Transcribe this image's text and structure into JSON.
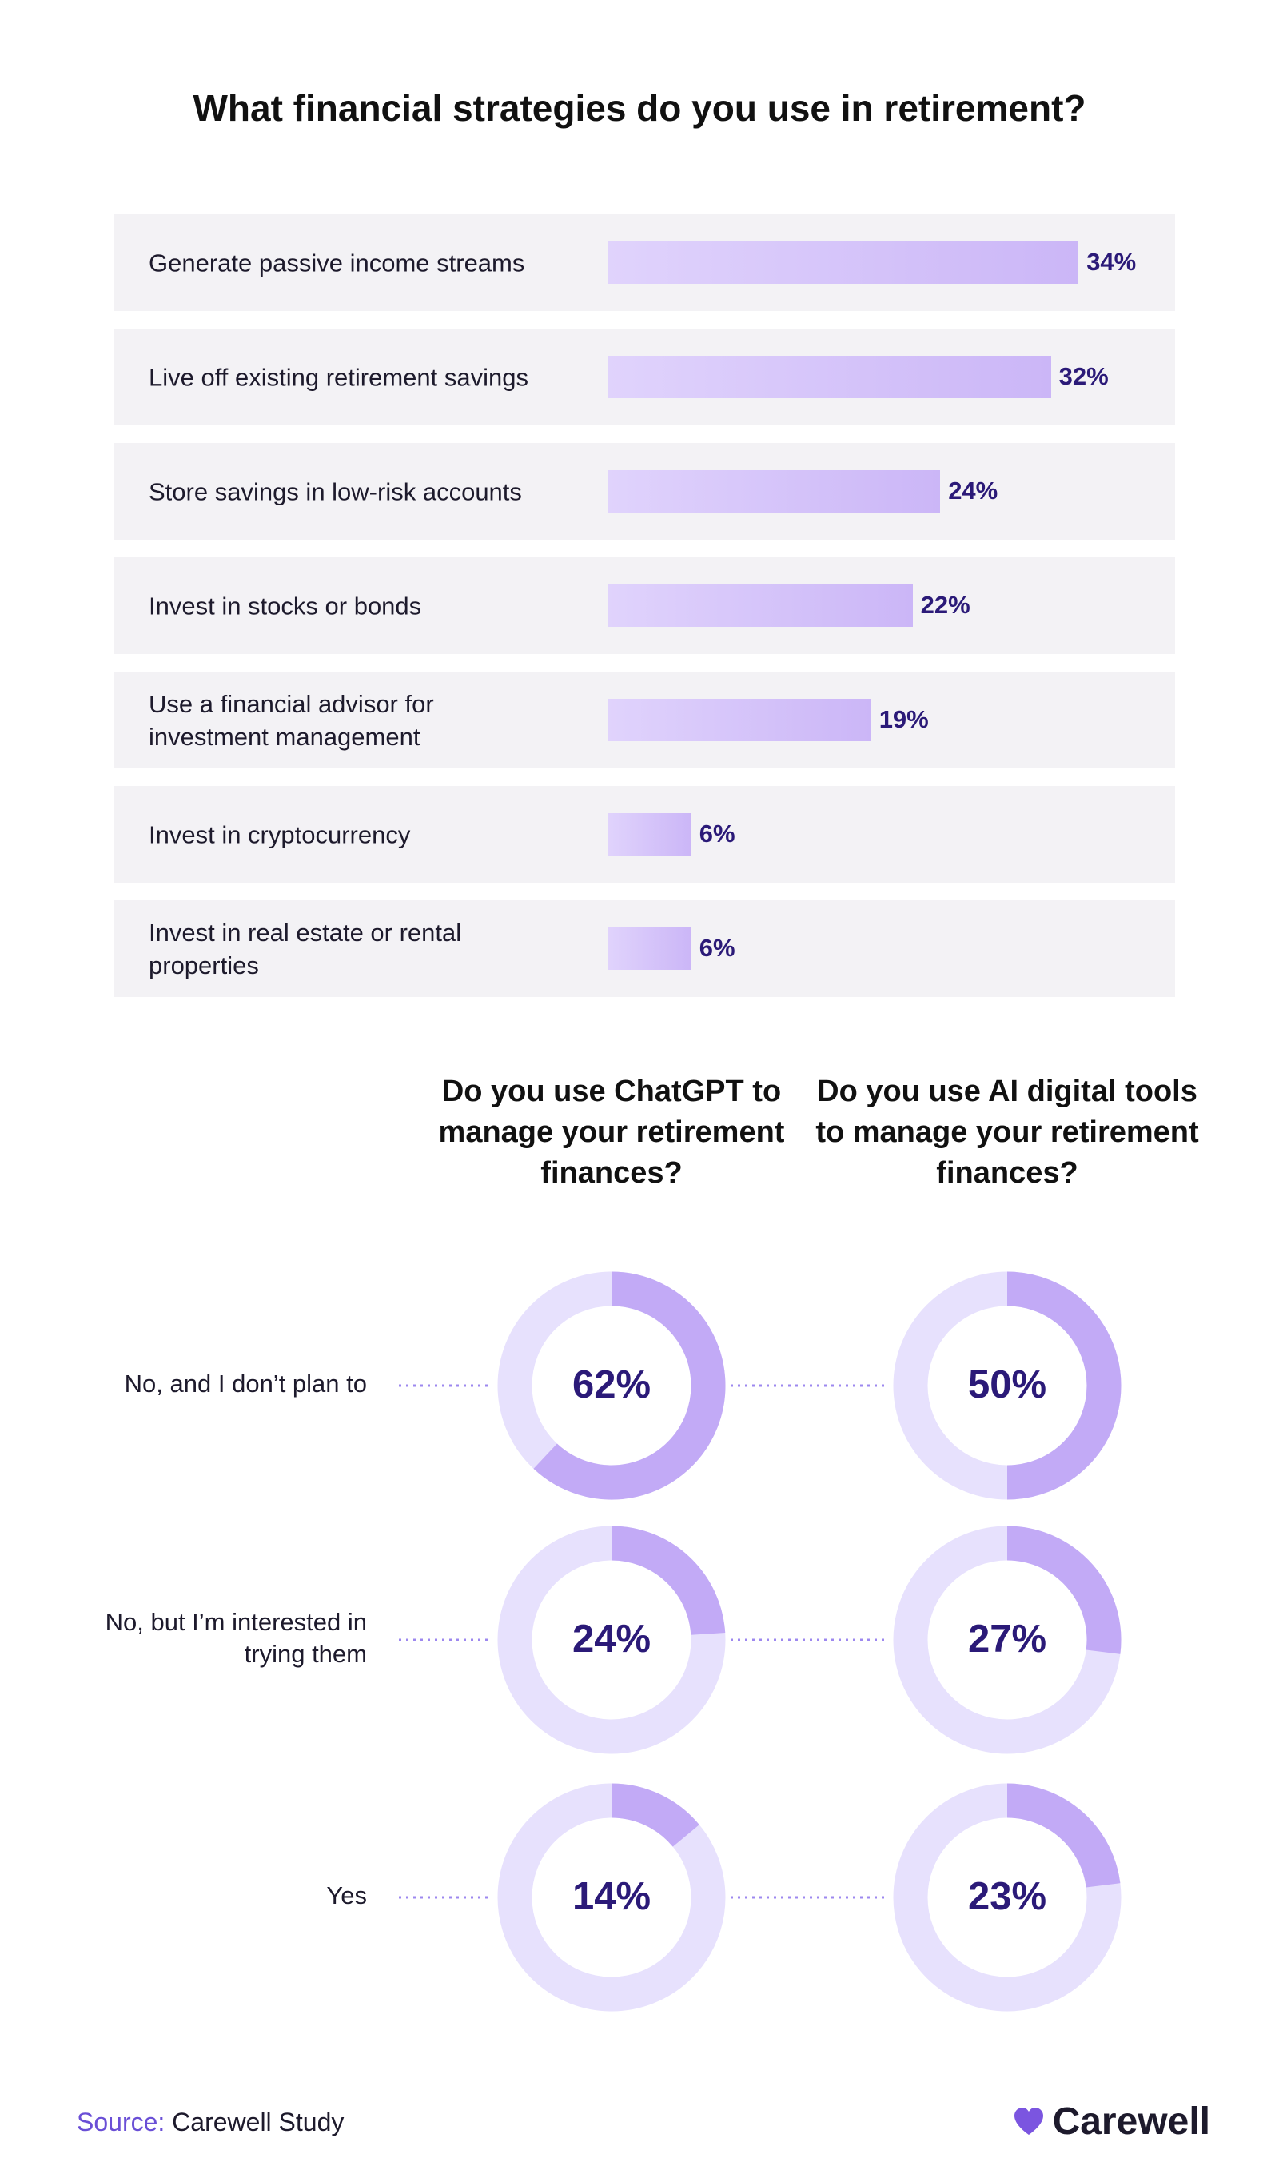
{
  "chart_data": [
    {
      "type": "bar",
      "title": "What financial strategies do you use in retirement?",
      "categories": [
        "Generate passive income streams",
        "Live off existing retirement savings",
        "Store savings in low-risk accounts",
        "Invest in stocks or bonds",
        "Use a financial advisor for investment management",
        "Invest in cryptocurrency",
        "Invest in real estate or rental properties"
      ],
      "values": [
        34,
        32,
        24,
        22,
        19,
        6,
        6
      ],
      "value_labels": [
        "34%",
        "32%",
        "24%",
        "22%",
        "19%",
        "6%",
        "6%"
      ],
      "color": "#cbb6f7"
    },
    {
      "type": "donut",
      "categories": [
        "No, and I don’t plan to",
        "No, but I’m interested in trying them",
        "Yes"
      ],
      "series": [
        {
          "name": "Do you use ChatGPT to manage your retirement finances?",
          "color": "#c2aaf6",
          "values": [
            62,
            24,
            14
          ],
          "value_labels": [
            "62%",
            "24%",
            "14%"
          ]
        },
        {
          "name": "Do you use AI digital tools to manage your retirement finances?",
          "color": "#c2aaf6",
          "values": [
            50,
            27,
            23
          ],
          "value_labels": [
            "50%",
            "27%",
            "23%"
          ]
        }
      ]
    }
  ],
  "source": {
    "label": "Source:",
    "text": "Carewell Study"
  },
  "brand": "Carewell"
}
